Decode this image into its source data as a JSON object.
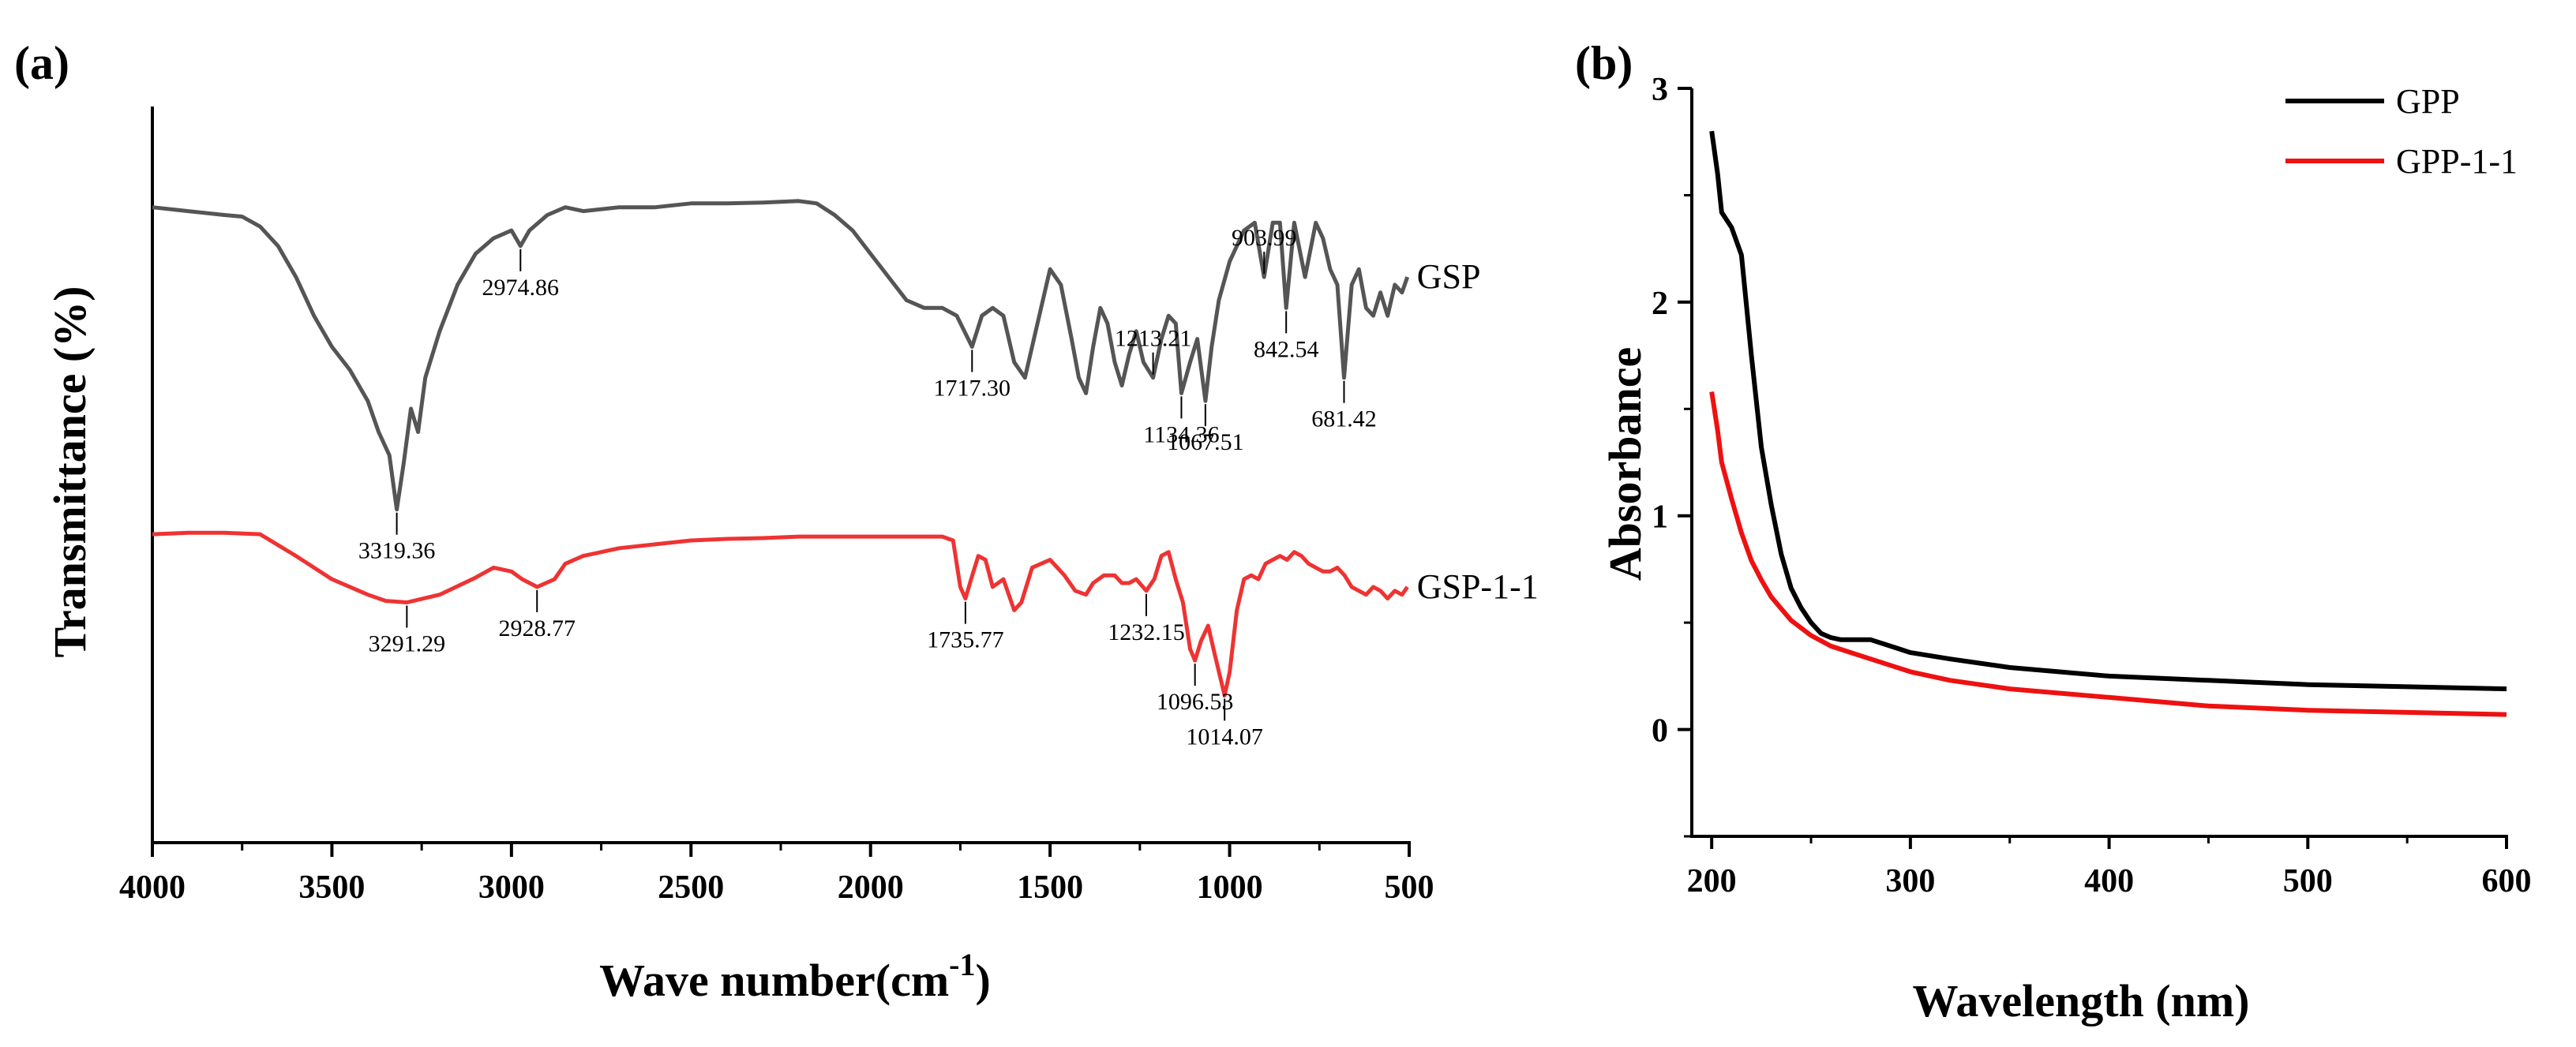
{
  "chart_data": [
    {
      "panel": "(a)",
      "type": "line",
      "title": "",
      "xlabel": "Wave number(cm",
      "xlabel_sup": "-1",
      "xlabel_close": ")",
      "ylabel": "Transmittance (%)",
      "xlim": [
        4000,
        500
      ],
      "x_reversed": true,
      "xticks": [
        4000,
        3500,
        3000,
        2500,
        2000,
        1500,
        1000,
        500
      ],
      "xtick_labels": [
        "4000",
        "3500",
        "3000",
        "2500",
        "2000",
        "1500",
        "1000",
        "500"
      ],
      "yticks_shown": false,
      "grid": false,
      "series": [
        {
          "name": "GSP",
          "color": "#555555",
          "points": [
            [
              4000,
              82
            ],
            [
              3900,
              81.5
            ],
            [
              3800,
              81
            ],
            [
              3750,
              80.8
            ],
            [
              3700,
              79.5
            ],
            [
              3650,
              77
            ],
            [
              3600,
              73
            ],
            [
              3550,
              68
            ],
            [
              3500,
              64
            ],
            [
              3450,
              61
            ],
            [
              3400,
              57
            ],
            [
              3370,
              53
            ],
            [
              3340,
              50
            ],
            [
              3319.36,
              43
            ],
            [
              3300,
              49
            ],
            [
              3280,
              56
            ],
            [
              3260,
              53
            ],
            [
              3240,
              60
            ],
            [
              3200,
              66
            ],
            [
              3150,
              72
            ],
            [
              3100,
              76
            ],
            [
              3050,
              78
            ],
            [
              3000,
              79
            ],
            [
              2974.86,
              77
            ],
            [
              2950,
              79
            ],
            [
              2900,
              81
            ],
            [
              2850,
              82
            ],
            [
              2800,
              81.5
            ],
            [
              2700,
              82
            ],
            [
              2600,
              82
            ],
            [
              2500,
              82.5
            ],
            [
              2400,
              82.5
            ],
            [
              2300,
              82.6
            ],
            [
              2200,
              82.8
            ],
            [
              2150,
              82.5
            ],
            [
              2100,
              81
            ],
            [
              2050,
              79
            ],
            [
              2000,
              76
            ],
            [
              1950,
              73
            ],
            [
              1900,
              70
            ],
            [
              1850,
              69
            ],
            [
              1800,
              69
            ],
            [
              1760,
              68
            ],
            [
              1717.3,
              64
            ],
            [
              1690,
              68
            ],
            [
              1660,
              69
            ],
            [
              1630,
              68
            ],
            [
              1600,
              62
            ],
            [
              1570,
              60
            ],
            [
              1540,
              66
            ],
            [
              1500,
              74
            ],
            [
              1470,
              72
            ],
            [
              1440,
              65
            ],
            [
              1420,
              60
            ],
            [
              1400,
              58
            ],
            [
              1380,
              64
            ],
            [
              1360,
              69
            ],
            [
              1340,
              67
            ],
            [
              1320,
              62
            ],
            [
              1300,
              59
            ],
            [
              1280,
              63
            ],
            [
              1260,
              66
            ],
            [
              1240,
              62
            ],
            [
              1213.21,
              60
            ],
            [
              1190,
              65
            ],
            [
              1170,
              68
            ],
            [
              1150,
              67
            ],
            [
              1134.36,
              58
            ],
            [
              1110,
              62
            ],
            [
              1090,
              65
            ],
            [
              1067.51,
              57
            ],
            [
              1050,
              64
            ],
            [
              1030,
              70
            ],
            [
              1000,
              75
            ],
            [
              960,
              79
            ],
            [
              930,
              80
            ],
            [
              903.99,
              73
            ],
            [
              880,
              80
            ],
            [
              860,
              80
            ],
            [
              842.54,
              69
            ],
            [
              820,
              80
            ],
            [
              790,
              73
            ],
            [
              760,
              80
            ],
            [
              740,
              78
            ],
            [
              720,
              74
            ],
            [
              700,
              72
            ],
            [
              681.42,
              60
            ],
            [
              660,
              72
            ],
            [
              640,
              74
            ],
            [
              620,
              69
            ],
            [
              600,
              68
            ],
            [
              580,
              71
            ],
            [
              560,
              68
            ],
            [
              540,
              72
            ],
            [
              520,
              71
            ],
            [
              505,
              73
            ]
          ]
        },
        {
          "name": "GSP-1-1",
          "color": "#ee3333",
          "points": [
            [
              4000,
              39.8
            ],
            [
              3900,
              40
            ],
            [
              3800,
              40
            ],
            [
              3700,
              39.8
            ],
            [
              3600,
              37
            ],
            [
              3500,
              34
            ],
            [
              3400,
              32
            ],
            [
              3350,
              31.2
            ],
            [
              3291.29,
              31
            ],
            [
              3200,
              32
            ],
            [
              3100,
              34.2
            ],
            [
              3050,
              35.5
            ],
            [
              3000,
              35
            ],
            [
              2970,
              34
            ],
            [
              2928.77,
              33
            ],
            [
              2880,
              34
            ],
            [
              2850,
              36
            ],
            [
              2800,
              37
            ],
            [
              2700,
              38
            ],
            [
              2600,
              38.5
            ],
            [
              2500,
              39
            ],
            [
              2400,
              39.2
            ],
            [
              2300,
              39.3
            ],
            [
              2200,
              39.5
            ],
            [
              2100,
              39.5
            ],
            [
              2000,
              39.5
            ],
            [
              1900,
              39.5
            ],
            [
              1800,
              39.5
            ],
            [
              1770,
              39
            ],
            [
              1750,
              33
            ],
            [
              1735.77,
              31.5
            ],
            [
              1720,
              34
            ],
            [
              1700,
              37
            ],
            [
              1680,
              36.5
            ],
            [
              1660,
              33
            ],
            [
              1630,
              34
            ],
            [
              1600,
              30
            ],
            [
              1580,
              31
            ],
            [
              1550,
              35.5
            ],
            [
              1500,
              36.5
            ],
            [
              1460,
              34.5
            ],
            [
              1430,
              32.5
            ],
            [
              1400,
              32
            ],
            [
              1380,
              33.5
            ],
            [
              1350,
              34.5
            ],
            [
              1320,
              34.5
            ],
            [
              1300,
              33.5
            ],
            [
              1280,
              33.5
            ],
            [
              1260,
              34
            ],
            [
              1232.15,
              32.5
            ],
            [
              1210,
              34
            ],
            [
              1190,
              37
            ],
            [
              1170,
              37.5
            ],
            [
              1150,
              34
            ],
            [
              1130,
              31
            ],
            [
              1110,
              25
            ],
            [
              1096.53,
              23.5
            ],
            [
              1080,
              26
            ],
            [
              1060,
              28
            ],
            [
              1040,
              24
            ],
            [
              1014.07,
              19
            ],
            [
              1000,
              22
            ],
            [
              980,
              30
            ],
            [
              960,
              34
            ],
            [
              940,
              34.5
            ],
            [
              920,
              34
            ],
            [
              900,
              36
            ],
            [
              880,
              36.5
            ],
            [
              860,
              37
            ],
            [
              840,
              36.5
            ],
            [
              820,
              37.5
            ],
            [
              800,
              37
            ],
            [
              780,
              36
            ],
            [
              760,
              35.5
            ],
            [
              740,
              35
            ],
            [
              720,
              35
            ],
            [
              700,
              35.5
            ],
            [
              680,
              34.5
            ],
            [
              660,
              33
            ],
            [
              640,
              32.5
            ],
            [
              620,
              32
            ],
            [
              600,
              33
            ],
            [
              580,
              32.5
            ],
            [
              560,
              31.5
            ],
            [
              540,
              32.5
            ],
            [
              520,
              32
            ],
            [
              505,
              33
            ]
          ]
        }
      ],
      "annotations": [
        {
          "label": "3319.36",
          "x": 3319.36,
          "series": "GSP",
          "side": "below"
        },
        {
          "label": "2974.86",
          "x": 2974.86,
          "series": "GSP",
          "side": "below"
        },
        {
          "label": "1717.30",
          "x": 1717.3,
          "series": "GSP",
          "side": "below"
        },
        {
          "label": "1213.21",
          "x": 1213.21,
          "series": "GSP",
          "side": "above"
        },
        {
          "label": "1134.36",
          "x": 1134.36,
          "series": "GSP",
          "side": "below"
        },
        {
          "label": "1067.51",
          "x": 1067.51,
          "series": "GSP",
          "side": "below"
        },
        {
          "label": "903.99",
          "x": 903.99,
          "series": "GSP",
          "side": "above"
        },
        {
          "label": "842.54",
          "x": 842.54,
          "series": "GSP",
          "side": "below"
        },
        {
          "label": "681.42",
          "x": 681.42,
          "series": "GSP",
          "side": "below"
        },
        {
          "label": "3291.29",
          "x": 3291.29,
          "series": "GSP-1-1",
          "side": "below"
        },
        {
          "label": "2928.77",
          "x": 2928.77,
          "series": "GSP-1-1",
          "side": "below"
        },
        {
          "label": "1735.77",
          "x": 1735.77,
          "series": "GSP-1-1",
          "side": "below"
        },
        {
          "label": "1232.15",
          "x": 1232.15,
          "series": "GSP-1-1",
          "side": "below"
        },
        {
          "label": "1096.53",
          "x": 1096.53,
          "series": "GSP-1-1",
          "side": "below"
        },
        {
          "label": "1014.07",
          "x": 1014.07,
          "series": "GSP-1-1",
          "side": "below"
        }
      ]
    },
    {
      "panel": "(b)",
      "type": "line",
      "title": "",
      "xlabel": "Wavelength (nm)",
      "ylabel": "Absorbance",
      "xlim": [
        190,
        600
      ],
      "ylim": [
        -0.5,
        3
      ],
      "xticks": [
        200,
        300,
        400,
        500,
        600
      ],
      "xtick_labels": [
        "200",
        "300",
        "400",
        "500",
        "600"
      ],
      "yticks": [
        0,
        1,
        2,
        3
      ],
      "ytick_labels": [
        "0",
        "1",
        "2",
        "3"
      ],
      "grid": false,
      "legend": "top-right",
      "series": [
        {
          "name": "GPP",
          "color": "#000000",
          "points": [
            [
              200,
              2.8
            ],
            [
              203,
              2.6
            ],
            [
              205,
              2.42
            ],
            [
              210,
              2.35
            ],
            [
              215,
              2.22
            ],
            [
              220,
              1.75
            ],
            [
              225,
              1.32
            ],
            [
              230,
              1.05
            ],
            [
              235,
              0.82
            ],
            [
              240,
              0.66
            ],
            [
              245,
              0.57
            ],
            [
              250,
              0.5
            ],
            [
              255,
              0.45
            ],
            [
              260,
              0.43
            ],
            [
              265,
              0.42
            ],
            [
              270,
              0.42
            ],
            [
              280,
              0.42
            ],
            [
              290,
              0.39
            ],
            [
              300,
              0.36
            ],
            [
              320,
              0.33
            ],
            [
              350,
              0.29
            ],
            [
              400,
              0.25
            ],
            [
              450,
              0.23
            ],
            [
              500,
              0.21
            ],
            [
              550,
              0.2
            ],
            [
              600,
              0.19
            ]
          ]
        },
        {
          "name": "GPP-1-1",
          "color": "#ee1111",
          "points": [
            [
              200,
              1.58
            ],
            [
              203,
              1.4
            ],
            [
              205,
              1.25
            ],
            [
              210,
              1.08
            ],
            [
              215,
              0.92
            ],
            [
              220,
              0.79
            ],
            [
              225,
              0.7
            ],
            [
              230,
              0.62
            ],
            [
              240,
              0.51
            ],
            [
              250,
              0.44
            ],
            [
              260,
              0.39
            ],
            [
              270,
              0.36
            ],
            [
              280,
              0.33
            ],
            [
              290,
              0.3
            ],
            [
              300,
              0.27
            ],
            [
              320,
              0.23
            ],
            [
              350,
              0.19
            ],
            [
              400,
              0.15
            ],
            [
              450,
              0.11
            ],
            [
              500,
              0.09
            ],
            [
              550,
              0.08
            ],
            [
              600,
              0.07
            ]
          ]
        }
      ]
    }
  ]
}
